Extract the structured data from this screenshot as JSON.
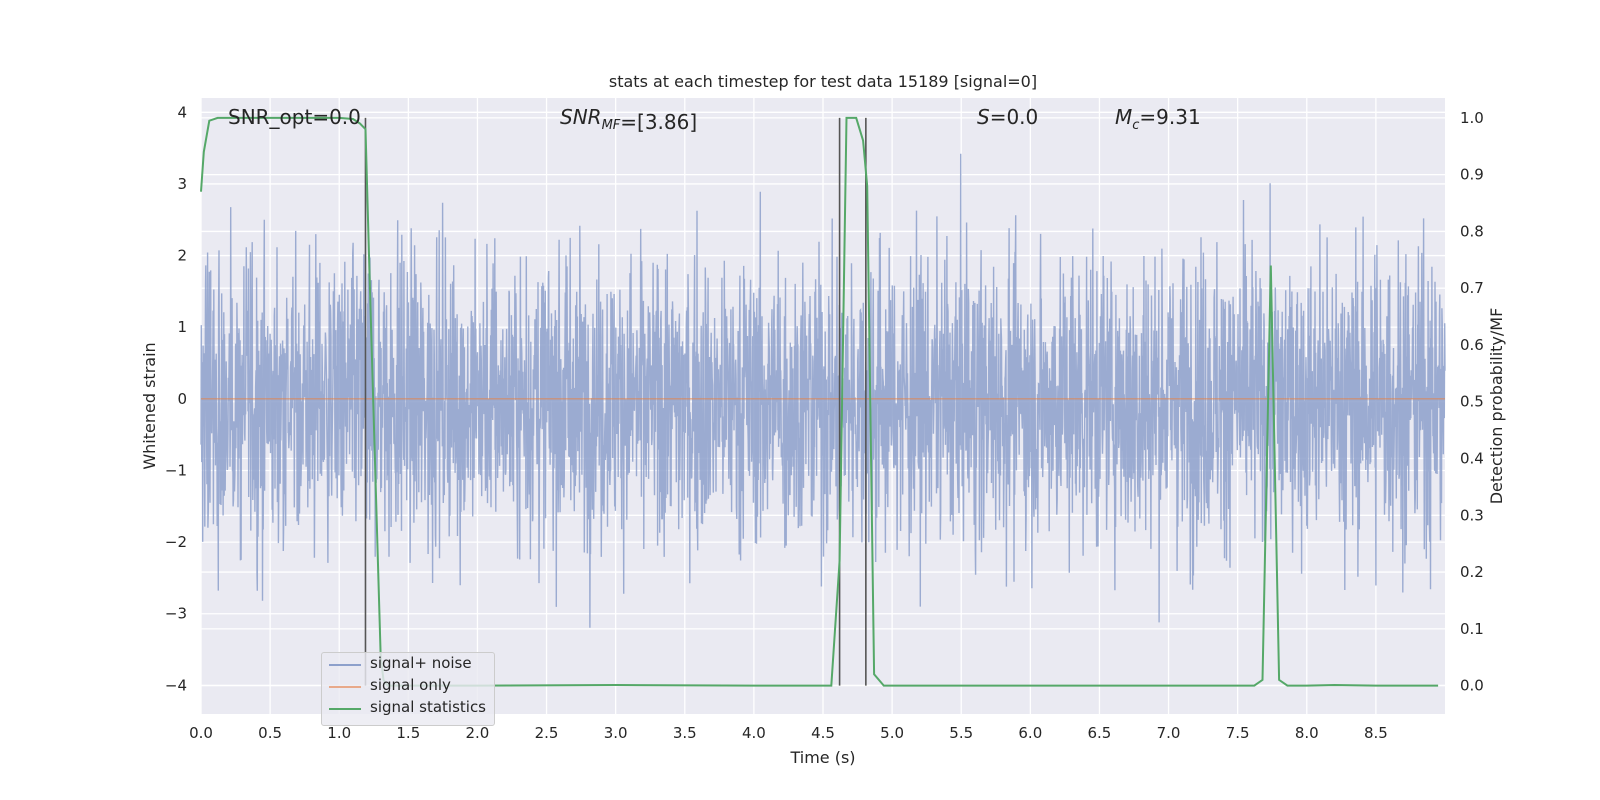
{
  "chart_data": {
    "type": "line",
    "title": "stats at each timestep for test data 15189 [signal=0]",
    "xlabel": "Time (s)",
    "ylabel_left": "Whitened strain",
    "ylabel_right": "Detection probability/MF",
    "xlim": [
      0.0,
      9.0
    ],
    "ylim_left": [
      -4.4,
      4.2
    ],
    "ylim_right": [
      -0.05,
      1.035
    ],
    "x_ticks": [
      "0.0",
      "0.5",
      "1.0",
      "1.5",
      "2.0",
      "2.5",
      "3.0",
      "3.5",
      "4.0",
      "4.5",
      "5.0",
      "5.5",
      "6.0",
      "6.5",
      "7.0",
      "7.5",
      "8.0",
      "8.5"
    ],
    "y_left_ticks": [
      "−4",
      "−3",
      "−2",
      "−1",
      "0",
      "1",
      "2",
      "3",
      "4"
    ],
    "y_right_ticks": [
      "0.0",
      "0.1",
      "0.2",
      "0.3",
      "0.4",
      "0.5",
      "0.6",
      "0.7",
      "0.8",
      "0.9",
      "1.0"
    ],
    "grid": true,
    "annotations": {
      "snr_opt": "SNR_opt=0.0",
      "snr_mf": "=[3.86]",
      "s": "=0.0",
      "mc": "=9.31"
    },
    "legend": {
      "placement": "lower-left",
      "entries": [
        "signal+ noise",
        "signal only",
        "signal statistics"
      ]
    },
    "series": [
      {
        "name": "signal+ noise",
        "color": "#8da0cb",
        "axis": "left",
        "description_range": [
          -3.9,
          3.85
        ],
        "typical_std": 1.0
      },
      {
        "name": "signal only",
        "color": "#dd8452",
        "axis": "left",
        "x": [
          0.0,
          9.0
        ],
        "y": [
          0.0,
          0.0
        ]
      },
      {
        "name": "signal statistics",
        "color": "#55a868",
        "axis": "right",
        "x": [
          0.0,
          0.02,
          0.06,
          0.12,
          0.2,
          0.4,
          0.6,
          0.8,
          1.0,
          1.1,
          1.15,
          1.19,
          1.22,
          1.3,
          1.32,
          1.35,
          1.5,
          2.0,
          3.0,
          4.0,
          4.5,
          4.56,
          4.62,
          4.67,
          4.74,
          4.79,
          4.82,
          4.87,
          4.94,
          5.5,
          6.0,
          7.0,
          7.5,
          7.62,
          7.68,
          7.74,
          7.8,
          7.86,
          8.0,
          8.2,
          8.5,
          8.95
        ],
        "y": [
          0.87,
          0.94,
          0.995,
          1.0,
          1.0,
          1.0,
          1.0,
          1.0,
          1.0,
          0.998,
          0.99,
          0.98,
          0.72,
          0.05,
          0.01,
          0.0,
          0.0,
          0.0,
          0.001,
          0.0,
          0.0,
          0.0,
          0.22,
          1.0,
          1.0,
          0.96,
          0.88,
          0.02,
          0.0,
          0.0,
          0.0,
          0.0,
          0.0,
          0.0,
          0.01,
          0.74,
          0.01,
          0.0,
          0.0,
          0.001,
          0.0,
          0.0
        ]
      }
    ],
    "vertical_lines": [
      1.19,
      4.62,
      4.81
    ]
  }
}
